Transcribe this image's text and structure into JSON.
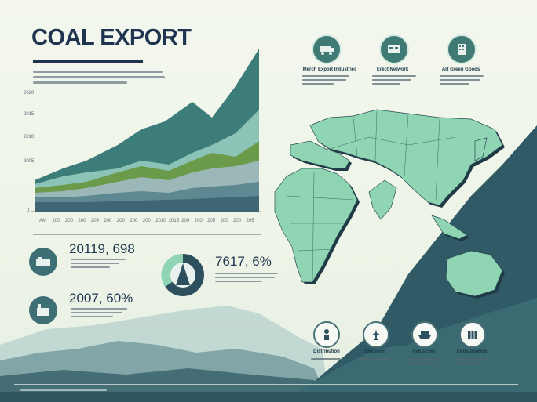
{
  "title": "COAL EXPORT",
  "chart": {
    "y_ticks": [
      "2020",
      "2015",
      "2010",
      "2005",
      "0"
    ],
    "x_ticks": [
      "AM",
      "200",
      "200",
      "200",
      "205",
      "200",
      "200",
      "200",
      "200",
      "2010",
      "2015",
      "200",
      "200",
      "205",
      "200",
      "200",
      "205"
    ]
  },
  "stats": [
    {
      "value": "20119, 698",
      "icon": "mine-icon"
    },
    {
      "value": "7617, 6%",
      "icon": "pie-icon"
    },
    {
      "value": "2007, 60%",
      "icon": "factory-icon"
    }
  ],
  "top_icons": [
    {
      "label": "Merch Export Industries",
      "icon": "mining-truck-icon"
    },
    {
      "label": "Erect Network",
      "icon": "train-icon"
    },
    {
      "label": "Art Green Goods",
      "icon": "building-icon"
    }
  ],
  "bottom_icons": [
    {
      "label": "Distribution",
      "icon": "worker-icon"
    },
    {
      "label": "Shipment",
      "icon": "airplane-icon"
    },
    {
      "label": "Industries",
      "icon": "ship-icon"
    },
    {
      "label": "Consumption",
      "icon": "container-icon"
    }
  ],
  "colors": {
    "navy": "#1f3450",
    "teal": "#3d7d79",
    "mint": "#8fd4b3",
    "green": "#6b9a4a",
    "mountain": "#2f5a66"
  }
}
